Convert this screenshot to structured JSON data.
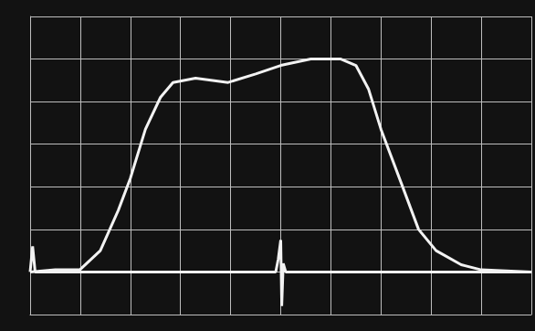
{
  "chart_data": {
    "type": "line",
    "xlim": [
      0,
      10
    ],
    "xticks": [
      0,
      1,
      2,
      3,
      4,
      5,
      6,
      7,
      8,
      9,
      10
    ],
    "ylim": [
      0,
      7
    ],
    "yticks": [
      0,
      1,
      2,
      3,
      4,
      5,
      6,
      7
    ],
    "grid": true,
    "tick_labels": false,
    "series": [
      {
        "color": "#f2f2f2",
        "line_style": "solid",
        "x": [
          0,
          0.5,
          1.0,
          1.4,
          1.76,
          2.0,
          2.3,
          2.6,
          2.85,
          3.3,
          3.95,
          4.5,
          5.0,
          5.6,
          6.2,
          6.5,
          6.75,
          7.0,
          7.4,
          7.75,
          8.1,
          8.6,
          9.0,
          10
        ],
        "values": [
          1.0,
          1.05,
          1.06,
          1.5,
          2.45,
          3.2,
          4.35,
          5.1,
          5.45,
          5.55,
          5.45,
          5.65,
          5.85,
          6.0,
          6.0,
          5.85,
          5.3,
          4.35,
          3.1,
          2.0,
          1.5,
          1.17,
          1.05,
          1.0
        ]
      },
      {
        "color": "#f2f2f2",
        "line_style": "solid",
        "x": [
          0,
          0.05,
          0.1,
          4.9,
          4.95,
          5.0,
          5.02,
          5.05,
          5.1,
          10
        ],
        "values": [
          1.0,
          1.6,
          1.0,
          1.0,
          1.3,
          1.75,
          0.2,
          1.2,
          1.0,
          1.0
        ]
      }
    ]
  }
}
